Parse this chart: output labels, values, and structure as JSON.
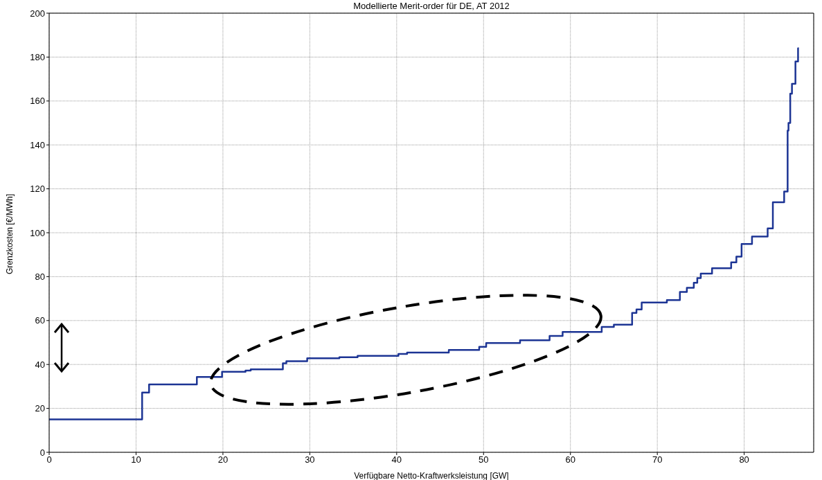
{
  "chart_data": {
    "type": "step",
    "title": "Modellierte Merit-order für DE, AT 2012",
    "xlabel": "Verfügbare Netto-Kraftwerksleistung [GW]",
    "ylabel": "Grenzkosten [€/MWh]",
    "x": [
      0,
      10.7,
      11.5,
      17.0,
      19.9,
      22.6,
      23.2,
      26.9,
      27.3,
      29.7,
      33.4,
      35.5,
      40.2,
      41.2,
      46.0,
      49.5,
      50.3,
      54.2,
      57.6,
      59.1,
      63.6,
      65.0,
      67.1,
      67.6,
      68.2,
      71.1,
      72.6,
      73.4,
      74.2,
      74.6,
      75.0,
      76.3,
      78.5,
      79.1,
      79.7,
      80.9,
      82.7,
      83.3,
      84.6,
      85.0,
      85.1,
      85.3,
      85.5,
      85.9,
      86.2,
      86.3
    ],
    "series": [
      {
        "color": "#1c3494",
        "values": [
          15,
          27.2,
          30.9,
          34.3,
          36.7,
          37.2,
          37.8,
          40.5,
          41.5,
          42.8,
          43.3,
          43.9,
          44.8,
          45.4,
          46.6,
          48.0,
          49.8,
          51.0,
          53.0,
          54.8,
          57.1,
          58.1,
          63.5,
          65.1,
          68.2,
          69.3,
          73.0,
          74.9,
          77.2,
          79.3,
          81.4,
          83.8,
          86.5,
          89.1,
          94.9,
          98.3,
          102,
          113.9,
          118.8,
          146.5,
          150,
          163.3,
          167.8,
          178,
          184,
          184
        ]
      }
    ],
    "xlim": [
      0,
      88
    ],
    "xticks": [
      0,
      10,
      20,
      30,
      40,
      50,
      60,
      70,
      80
    ],
    "ylim": [
      0,
      200
    ],
    "yticks": [
      0,
      20,
      40,
      60,
      80,
      100,
      120,
      140,
      160,
      180,
      200
    ],
    "grid": true
  }
}
